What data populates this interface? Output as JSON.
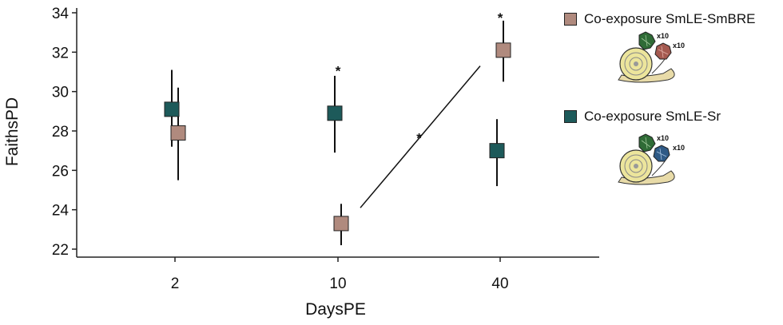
{
  "chart_data": {
    "type": "scatter",
    "xlabel": "DaysPE",
    "ylabel": "FaithsPD",
    "categories": [
      "2",
      "10",
      "40"
    ],
    "ylim": [
      22,
      34
    ],
    "yticks": [
      22,
      24,
      26,
      28,
      30,
      32,
      34
    ],
    "grid": false,
    "legend_position": "right",
    "series": [
      {
        "name": "Co-exposure SmLE-SmBRE",
        "color": "#b08a7e",
        "values": [
          27.9,
          23.3,
          32.1
        ],
        "error_low": [
          25.5,
          22.2,
          30.5
        ],
        "error_high": [
          30.2,
          24.3,
          33.6
        ]
      },
      {
        "name": "Co-exposure SmLE-Sr",
        "color": "#1d5a5a",
        "values": [
          29.1,
          28.9,
          27.0
        ],
        "error_low": [
          27.2,
          26.9,
          25.2
        ],
        "error_high": [
          31.1,
          30.8,
          28.6
        ]
      }
    ],
    "annotations": [
      {
        "text": "*",
        "category": "10",
        "y": 31.3
      },
      {
        "text": "*",
        "category": "40",
        "y": 34.0
      },
      {
        "text": "*",
        "between": [
          "10",
          "40"
        ],
        "y": 27.9
      }
    ],
    "trend_line": {
      "from": {
        "category": "10",
        "y": 24.1
      },
      "to": {
        "category": "40",
        "y": 31.3
      }
    },
    "legend_badges": [
      "x10",
      "x10"
    ]
  }
}
